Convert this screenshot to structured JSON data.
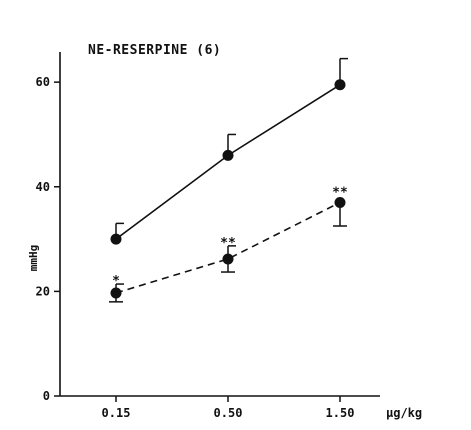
{
  "chart_data": {
    "type": "line",
    "title": "NE-RESERPINE (6)",
    "xlabel": "µg/kg",
    "ylabel": "mmHg",
    "categories": [
      "0.15",
      "0.50",
      "1.50"
    ],
    "y_ticks": [
      "0",
      "20",
      "40",
      "60"
    ],
    "ylim": [
      0,
      65
    ],
    "grid": false,
    "legend": "none",
    "series": [
      {
        "style": "solid",
        "values": [
          30,
          46,
          59.5
        ],
        "error": [
          3,
          4,
          5
        ]
      },
      {
        "style": "dashed",
        "values": [
          19.7,
          26.2,
          37
        ],
        "error": [
          1.7,
          2.5,
          4.5
        ],
        "error_side": [
          "both",
          "both",
          "down"
        ],
        "annotations": [
          "*",
          "**",
          "**"
        ]
      }
    ]
  }
}
